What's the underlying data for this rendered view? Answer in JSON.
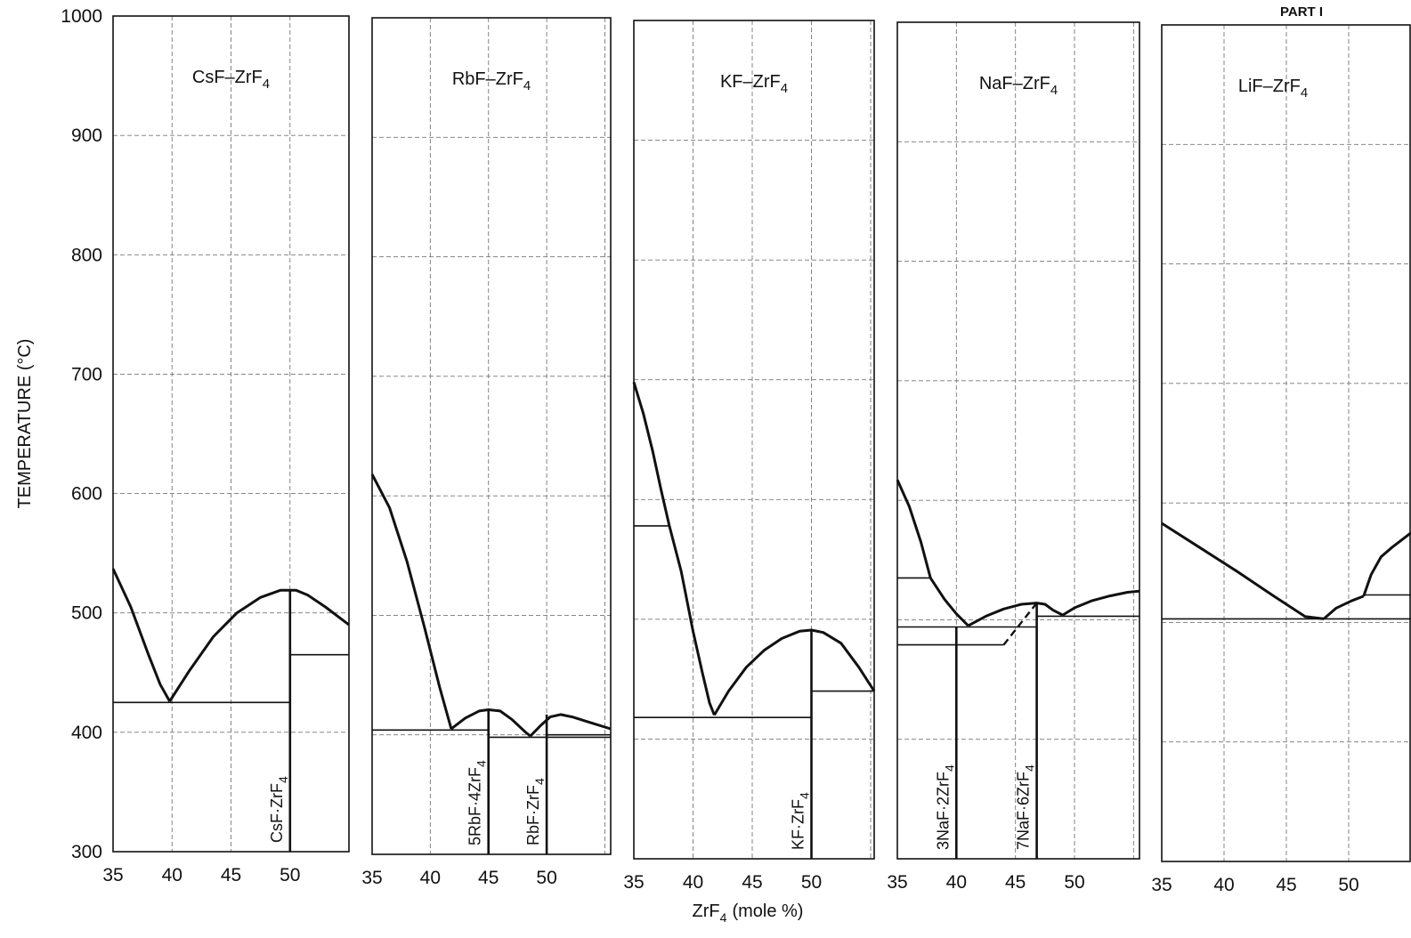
{
  "figure": {
    "part_label": "PART I",
    "ylabel": "TEMPERATURE (°C)",
    "xlabel": "ZrF4 (mole %)",
    "xlabel_main": "ZrF",
    "xlabel_sub": "4",
    "xlabel_rest": "(mole %)"
  },
  "chart_data": [
    {
      "type": "line",
      "title": "CsF–ZrF4",
      "title_parts": [
        "CsF–ZrF",
        "4"
      ],
      "xlabel": "ZrF4 (mole %)",
      "ylabel": "TEMPERATURE (°C)",
      "xlim": [
        35,
        55
      ],
      "ylim": [
        300,
        1000
      ],
      "xticks": [
        35,
        40,
        45,
        50
      ],
      "yticks": [
        300,
        400,
        500,
        600,
        700,
        800,
        900,
        1000
      ],
      "grid": true,
      "series": [
        {
          "style": "curve",
          "x": [
            35,
            36.5,
            38,
            39,
            39.8
          ],
          "y": [
            537,
            505,
            465,
            440,
            426
          ]
        },
        {
          "style": "curve",
          "x": [
            39.8,
            41.5,
            43.5,
            45.5,
            47.5,
            49.2,
            50.5,
            51.5,
            53,
            55
          ],
          "y": [
            426,
            452,
            480,
            500,
            513,
            519,
            519,
            515,
            505,
            490
          ]
        },
        {
          "style": "isotherm",
          "x": [
            35,
            50
          ],
          "y": [
            425,
            425
          ]
        },
        {
          "style": "isotherm",
          "x": [
            50,
            55
          ],
          "y": [
            465,
            465
          ]
        },
        {
          "style": "compound",
          "x": [
            50,
            50
          ],
          "y": [
            300,
            519
          ]
        }
      ],
      "compounds": [
        {
          "parts": [
            "CsF·ZrF",
            "4"
          ],
          "x": 50
        }
      ]
    },
    {
      "type": "line",
      "title": "RbF–ZrF4",
      "title_parts": [
        "RbF–ZrF",
        "4"
      ],
      "xlabel": "ZrF4 (mole %)",
      "ylabel": "TEMPERATURE (°C)",
      "xlim": [
        35,
        55.5
      ],
      "ylim": [
        300,
        1000
      ],
      "xticks": [
        35,
        40,
        45,
        50
      ],
      "yticks": [
        300,
        400,
        500,
        600,
        700,
        800,
        900,
        1000
      ],
      "grid": true,
      "series": [
        {
          "style": "curve",
          "x": [
            35,
            36.5,
            38,
            39.5,
            40.8,
            41.8
          ],
          "y": [
            618,
            590,
            545,
            490,
            440,
            405
          ]
        },
        {
          "style": "curve",
          "x": [
            41.8,
            43,
            44.2,
            45,
            46,
            47,
            48.2,
            48.6
          ],
          "y": [
            405,
            414,
            420,
            421,
            420,
            413,
            402,
            399
          ]
        },
        {
          "style": "curve",
          "x": [
            48.6,
            49.5,
            50.3,
            51.2,
            52.2,
            53.5,
            55.5
          ],
          "y": [
            399,
            408,
            415,
            417,
            415,
            411,
            405
          ]
        },
        {
          "style": "isotherm",
          "x": [
            35,
            45
          ],
          "y": [
            404,
            404
          ]
        },
        {
          "style": "isotherm",
          "x": [
            45,
            55.5
          ],
          "y": [
            398,
            398
          ]
        },
        {
          "style": "isotherm",
          "x": [
            50,
            55.5
          ],
          "y": [
            400,
            400
          ]
        },
        {
          "style": "compound",
          "x": [
            45,
            45
          ],
          "y": [
            300,
            421
          ]
        },
        {
          "style": "compound",
          "x": [
            50,
            50
          ],
          "y": [
            300,
            417
          ]
        }
      ],
      "compounds": [
        {
          "parts": [
            "5RbF·4ZrF",
            "4"
          ],
          "x": 45
        },
        {
          "parts": [
            "RbF·ZrF",
            "4"
          ],
          "x": 50
        }
      ]
    },
    {
      "type": "line",
      "title": "KF–ZrF4",
      "title_parts": [
        "KF–ZrF",
        "4"
      ],
      "xlabel": "ZrF4 (mole %)",
      "ylabel": "TEMPERATURE (°C)",
      "xlim": [
        35,
        55.3
      ],
      "ylim": [
        300,
        1000
      ],
      "xticks": [
        35,
        40,
        45,
        50
      ],
      "yticks": [
        300,
        400,
        500,
        600,
        700,
        800,
        900,
        1000
      ],
      "grid": true,
      "series": [
        {
          "style": "curve",
          "x": [
            35,
            35.8,
            36.6,
            37.3,
            38
          ],
          "y": [
            698,
            672,
            640,
            608,
            578
          ]
        },
        {
          "style": "curve",
          "x": [
            38,
            39,
            40,
            40.8,
            41.4,
            41.8
          ],
          "y": [
            578,
            540,
            490,
            455,
            430,
            420
          ]
        },
        {
          "style": "curve",
          "x": [
            41.8,
            43,
            44.5,
            46,
            47.5,
            49,
            50,
            51,
            52.5,
            54,
            55.3
          ],
          "y": [
            420,
            440,
            460,
            474,
            484,
            490,
            491,
            489,
            480,
            460,
            440
          ]
        },
        {
          "style": "isotherm",
          "x": [
            35,
            38
          ],
          "y": [
            578,
            578
          ]
        },
        {
          "style": "isotherm",
          "x": [
            35,
            50
          ],
          "y": [
            418,
            418
          ]
        },
        {
          "style": "isotherm",
          "x": [
            50,
            55.3
          ],
          "y": [
            440,
            440
          ]
        },
        {
          "style": "compound",
          "x": [
            50,
            50
          ],
          "y": [
            300,
            491
          ]
        }
      ],
      "compounds": [
        {
          "parts": [
            "KF·ZrF",
            "4"
          ],
          "x": 50
        }
      ]
    },
    {
      "type": "line",
      "title": "NaF–ZrF4",
      "title_parts": [
        "NaF–ZrF",
        "4"
      ],
      "xlabel": "ZrF4 (mole %)",
      "ylabel": "TEMPERATURE (°C)",
      "xlim": [
        35,
        55.5
      ],
      "ylim": [
        300,
        1000
      ],
      "xticks": [
        35,
        40,
        45,
        50
      ],
      "yticks": [
        300,
        400,
        500,
        600,
        700,
        800,
        900,
        1000
      ],
      "grid": true,
      "series": [
        {
          "style": "curve",
          "x": [
            35,
            36,
            37,
            37.8
          ],
          "y": [
            617,
            595,
            565,
            535
          ]
        },
        {
          "style": "curve",
          "x": [
            37.8,
            39,
            40,
            41
          ],
          "y": [
            535,
            517,
            505,
            495
          ]
        },
        {
          "style": "curve",
          "x": [
            41,
            42.5,
            44,
            45.5,
            46.8,
            47.5,
            48.2,
            49
          ],
          "y": [
            495,
            503,
            509,
            513,
            514,
            513,
            508,
            504
          ]
        },
        {
          "style": "curve",
          "x": [
            49,
            50,
            51.5,
            53,
            54.5,
            55.5
          ],
          "y": [
            504,
            510,
            516,
            520,
            523,
            524
          ]
        },
        {
          "style": "isotherm",
          "x": [
            35,
            37.8
          ],
          "y": [
            535,
            535
          ]
        },
        {
          "style": "isotherm",
          "x": [
            35,
            46.8
          ],
          "y": [
            494,
            494
          ]
        },
        {
          "style": "isotherm",
          "x": [
            35,
            44
          ],
          "y": [
            479,
            479
          ]
        },
        {
          "style": "isotherm",
          "x": [
            46.8,
            55.5
          ],
          "y": [
            503,
            503
          ]
        },
        {
          "style": "peritectic",
          "x": [
            44,
            46.8
          ],
          "y": [
            479,
            514
          ]
        },
        {
          "style": "compound",
          "x": [
            40,
            40
          ],
          "y": [
            300,
            494
          ]
        },
        {
          "style": "compound",
          "x": [
            46.8,
            46.8
          ],
          "y": [
            300,
            514
          ]
        }
      ],
      "compounds": [
        {
          "parts": [
            "3NaF·2ZrF",
            "4"
          ],
          "x": 40
        },
        {
          "parts": [
            "7NaF·6ZrF",
            "4"
          ],
          "x": 46.8
        }
      ]
    },
    {
      "type": "line",
      "title": "LiF–ZrF4",
      "title_parts": [
        "LiF–ZrF",
        "4"
      ],
      "xlabel": "ZrF4 (mole %)",
      "ylabel": "TEMPERATURE (°C)",
      "xlim": [
        35,
        55
      ],
      "ylim": [
        300,
        1000
      ],
      "xticks": [
        35,
        40,
        45,
        50
      ],
      "yticks": [
        300,
        400,
        500,
        600,
        700,
        800,
        900,
        1000
      ],
      "grid": true,
      "series": [
        {
          "style": "curve",
          "x": [
            35,
            38,
            41,
            44,
            46.5,
            48
          ],
          "y": [
            583,
            563,
            543,
            522,
            505,
            503
          ]
        },
        {
          "style": "curve",
          "x": [
            48,
            49,
            50.2,
            51.2
          ],
          "y": [
            503,
            512,
            518,
            522
          ]
        },
        {
          "style": "curve",
          "x": [
            51.2,
            51.8,
            52.6,
            53.5,
            55
          ],
          "y": [
            522,
            540,
            555,
            563,
            575
          ]
        },
        {
          "style": "isotherm",
          "x": [
            35,
            55
          ],
          "y": [
            503,
            503
          ]
        },
        {
          "style": "isotherm",
          "x": [
            51.2,
            55
          ],
          "y": [
            523,
            523
          ]
        }
      ],
      "compounds": []
    }
  ]
}
